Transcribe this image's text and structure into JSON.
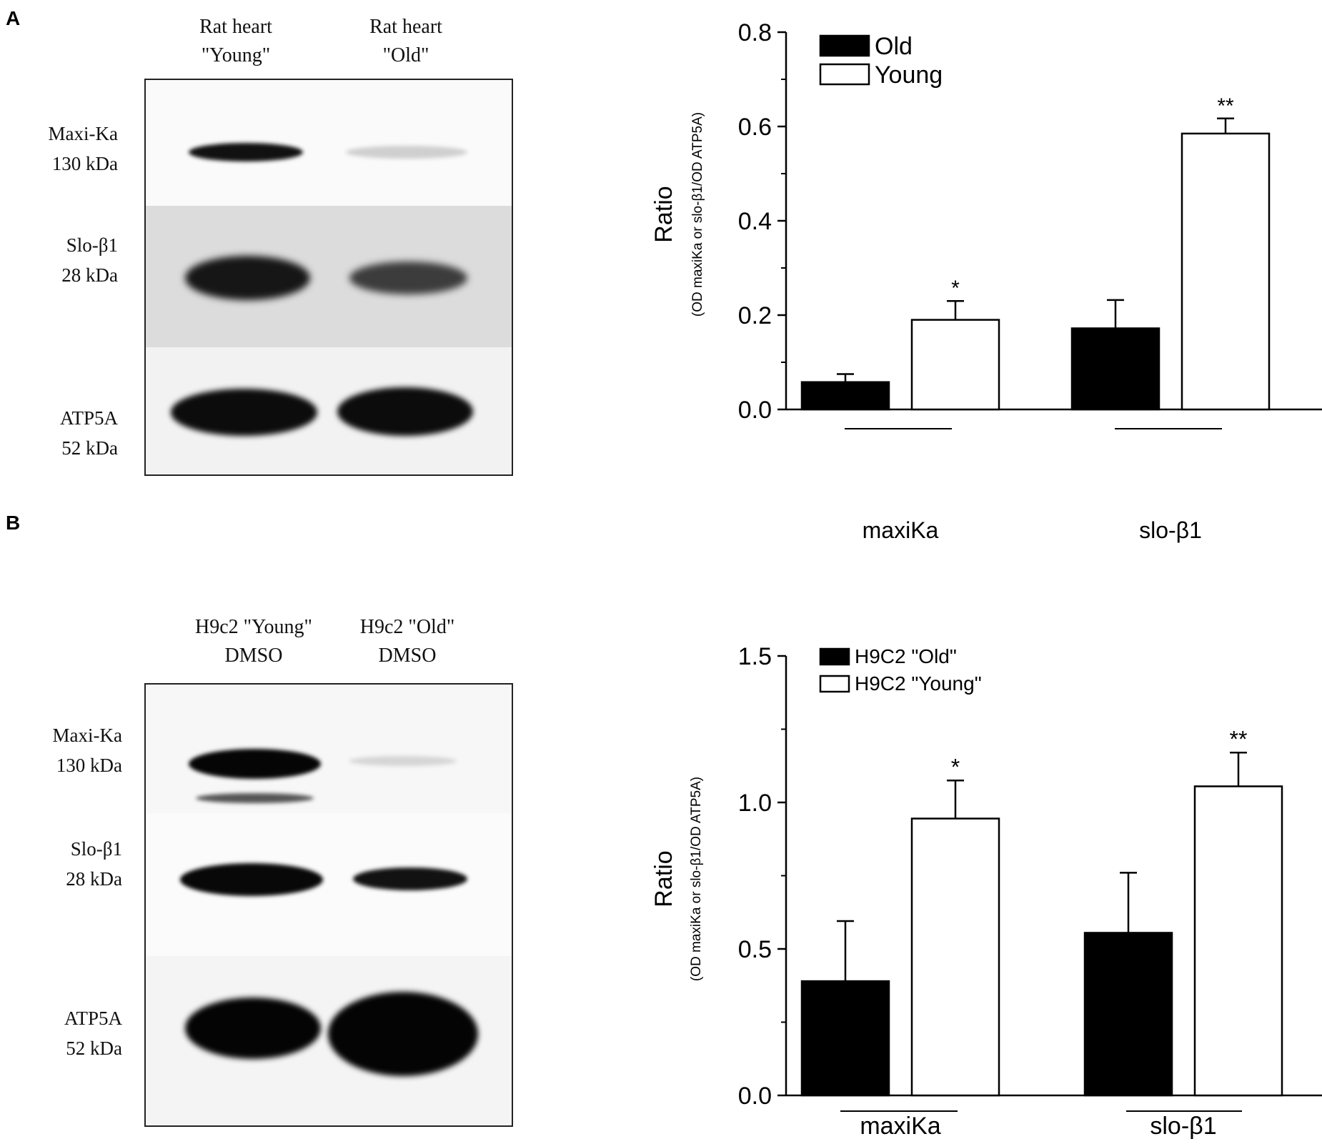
{
  "panels": [
    {
      "letter": "A",
      "blot": {
        "lane_headers": [
          {
            "line1": "Rat heart",
            "line2": "\"Young\""
          },
          {
            "line1": "Rat heart",
            "line2": "\"Old\""
          }
        ],
        "rows": [
          {
            "name": "Maxi-Ka",
            "size": "130 kDa"
          },
          {
            "name": "Slo-β1",
            "size": "28 kDa"
          },
          {
            "name": "ATP5A",
            "size": "52 kDa"
          }
        ]
      }
    },
    {
      "letter": "B",
      "blot": {
        "lane_headers": [
          {
            "line1": "H9c2 \"Young\"",
            "line2": "DMSO"
          },
          {
            "line1": "H9c2 \"Old\"",
            "line2": "DMSO"
          }
        ],
        "rows": [
          {
            "name": "Maxi-Ka",
            "size": "130 kDa"
          },
          {
            "name": "Slo-β1",
            "size": "28 kDa"
          },
          {
            "name": "ATP5A",
            "size": "52 kDa"
          }
        ]
      }
    }
  ],
  "chart_data": [
    {
      "type": "bar",
      "categories": [
        "maxiKa",
        "slo-β1"
      ],
      "series": [
        {
          "name": "Old",
          "color": "#000000",
          "values": [
            0.058,
            0.172
          ],
          "errors": [
            0.017,
            0.06
          ],
          "significance": [
            "",
            ""
          ]
        },
        {
          "name": "Young",
          "color": "#ffffff",
          "values": [
            0.19,
            0.585
          ],
          "errors": [
            0.04,
            0.032
          ],
          "significance": [
            "*",
            "**"
          ]
        }
      ],
      "ylabel": "Ratio",
      "ylabel_sub": "(OD maxiKa or slo-β1/OD ATP5A)",
      "ylim": [
        0,
        0.8
      ],
      "yticks": [
        "0.0",
        "0.2",
        "0.4",
        "0.6",
        "0.8"
      ],
      "legend": "top-left",
      "grid": false
    },
    {
      "type": "bar",
      "categories": [
        "maxiKa",
        "slo-β1"
      ],
      "series": [
        {
          "name": "H9C2 \"Old\"",
          "color": "#000000",
          "values": [
            0.39,
            0.555
          ],
          "errors": [
            0.205,
            0.205
          ],
          "significance": [
            "",
            ""
          ]
        },
        {
          "name": "H9C2 \"Young\"",
          "color": "#ffffff",
          "values": [
            0.945,
            1.055
          ],
          "errors": [
            0.13,
            0.115
          ],
          "significance": [
            "*",
            "**"
          ]
        }
      ],
      "ylabel": "Ratio",
      "ylabel_sub": "(OD maxiKa or slo-β1/OD ATP5A)",
      "ylim": [
        0,
        1.5
      ],
      "yticks": [
        "0.0",
        "0.5",
        "1.0",
        "1.5"
      ],
      "legend": "top-left",
      "grid": false
    }
  ]
}
